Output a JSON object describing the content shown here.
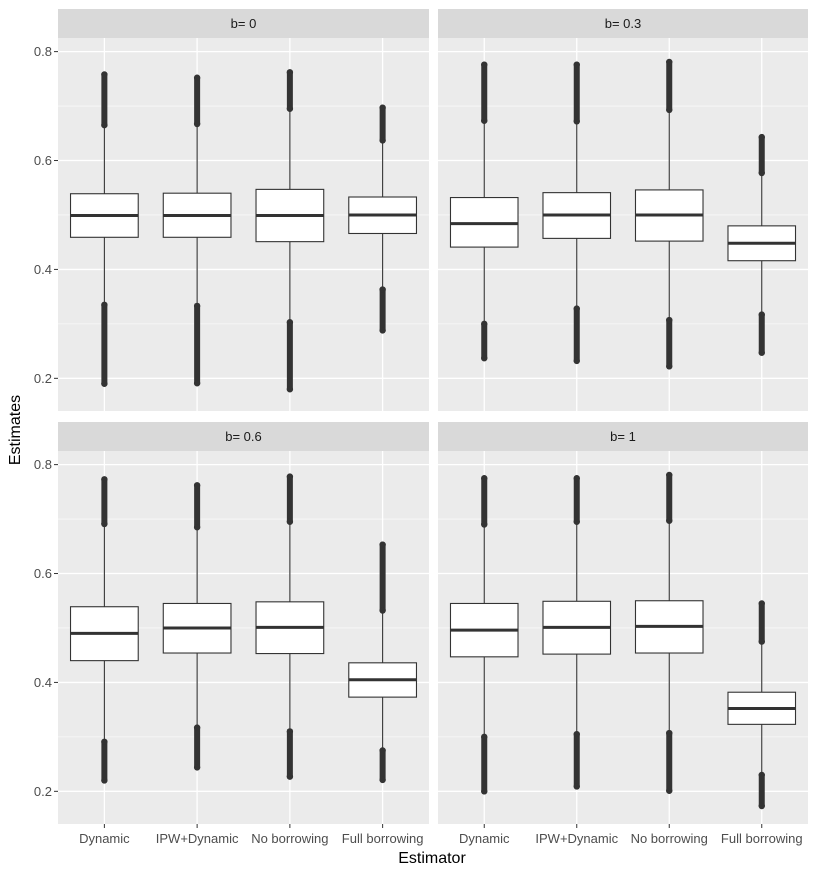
{
  "chart_data": {
    "type": "boxplot",
    "xlabel": "Estimator",
    "ylabel": "Estimates",
    "categories": [
      "Dynamic",
      "IPW+Dynamic",
      "No borrowing",
      "Full borrowing"
    ],
    "yticks": [
      0.2,
      0.4,
      0.6,
      0.8
    ],
    "ylim": [
      0.14,
      0.825
    ],
    "grid": true,
    "colors": {
      "panel_bg": "#ebebeb",
      "strip_bg": "#d9d9d9",
      "grid": "#ffffff",
      "box_fill": "#ffffff",
      "box_line": "#333333"
    },
    "panels": [
      {
        "strip": "b= 0",
        "boxes": [
          {
            "q1": 0.459,
            "median": 0.499,
            "q3": 0.539,
            "wlow": 0.34,
            "whigh": 0.66,
            "out_low": [
              0.19,
              0.335
            ],
            "out_high": [
              0.665,
              0.758
            ]
          },
          {
            "q1": 0.459,
            "median": 0.499,
            "q3": 0.54,
            "wlow": 0.338,
            "whigh": 0.662,
            "out_low": [
              0.191,
              0.333
            ],
            "out_high": [
              0.667,
              0.752
            ]
          },
          {
            "q1": 0.451,
            "median": 0.499,
            "q3": 0.547,
            "wlow": 0.308,
            "whigh": 0.69,
            "out_low": [
              0.18,
              0.303
            ],
            "out_high": [
              0.695,
              0.762
            ]
          },
          {
            "q1": 0.466,
            "median": 0.5,
            "q3": 0.533,
            "wlow": 0.368,
            "whigh": 0.632,
            "out_low": [
              0.288,
              0.363
            ],
            "out_high": [
              0.637,
              0.697
            ]
          }
        ]
      },
      {
        "strip": "b= 0.3",
        "boxes": [
          {
            "q1": 0.441,
            "median": 0.484,
            "q3": 0.532,
            "wlow": 0.305,
            "whigh": 0.668,
            "out_low": [
              0.237,
              0.3
            ],
            "out_high": [
              0.673,
              0.776
            ]
          },
          {
            "q1": 0.457,
            "median": 0.5,
            "q3": 0.541,
            "wlow": 0.333,
            "whigh": 0.667,
            "out_low": [
              0.232,
              0.328
            ],
            "out_high": [
              0.672,
              0.776
            ]
          },
          {
            "q1": 0.452,
            "median": 0.5,
            "q3": 0.546,
            "wlow": 0.312,
            "whigh": 0.688,
            "out_low": [
              0.222,
              0.307
            ],
            "out_high": [
              0.693,
              0.781
            ]
          },
          {
            "q1": 0.416,
            "median": 0.448,
            "q3": 0.48,
            "wlow": 0.322,
            "whigh": 0.572,
            "out_low": [
              0.247,
              0.317
            ],
            "out_high": [
              0.577,
              0.643
            ]
          }
        ]
      },
      {
        "strip": "b= 0.6",
        "boxes": [
          {
            "q1": 0.44,
            "median": 0.49,
            "q3": 0.539,
            "wlow": 0.296,
            "whigh": 0.686,
            "out_low": [
              0.22,
              0.291
            ],
            "out_high": [
              0.691,
              0.773
            ]
          },
          {
            "q1": 0.454,
            "median": 0.5,
            "q3": 0.545,
            "wlow": 0.322,
            "whigh": 0.68,
            "out_low": [
              0.244,
              0.317
            ],
            "out_high": [
              0.685,
              0.762
            ]
          },
          {
            "q1": 0.453,
            "median": 0.501,
            "q3": 0.548,
            "wlow": 0.315,
            "whigh": 0.69,
            "out_low": [
              0.227,
              0.31
            ],
            "out_high": [
              0.695,
              0.778
            ]
          },
          {
            "q1": 0.373,
            "median": 0.405,
            "q3": 0.436,
            "wlow": 0.28,
            "whigh": 0.527,
            "out_low": [
              0.221,
              0.275
            ],
            "out_high": [
              0.532,
              0.653
            ]
          }
        ]
      },
      {
        "strip": "b= 1",
        "boxes": [
          {
            "q1": 0.447,
            "median": 0.496,
            "q3": 0.545,
            "wlow": 0.305,
            "whigh": 0.685,
            "out_low": [
              0.2,
              0.3
            ],
            "out_high": [
              0.69,
              0.775
            ]
          },
          {
            "q1": 0.452,
            "median": 0.501,
            "q3": 0.549,
            "wlow": 0.31,
            "whigh": 0.69,
            "out_low": [
              0.209,
              0.305
            ],
            "out_high": [
              0.695,
              0.775
            ]
          },
          {
            "q1": 0.454,
            "median": 0.503,
            "q3": 0.55,
            "wlow": 0.312,
            "whigh": 0.692,
            "out_low": [
              0.201,
              0.307
            ],
            "out_high": [
              0.697,
              0.781
            ]
          },
          {
            "q1": 0.323,
            "median": 0.352,
            "q3": 0.382,
            "wlow": 0.235,
            "whigh": 0.47,
            "out_low": [
              0.173,
              0.23
            ],
            "out_high": [
              0.475,
              0.545
            ]
          }
        ]
      }
    ]
  }
}
